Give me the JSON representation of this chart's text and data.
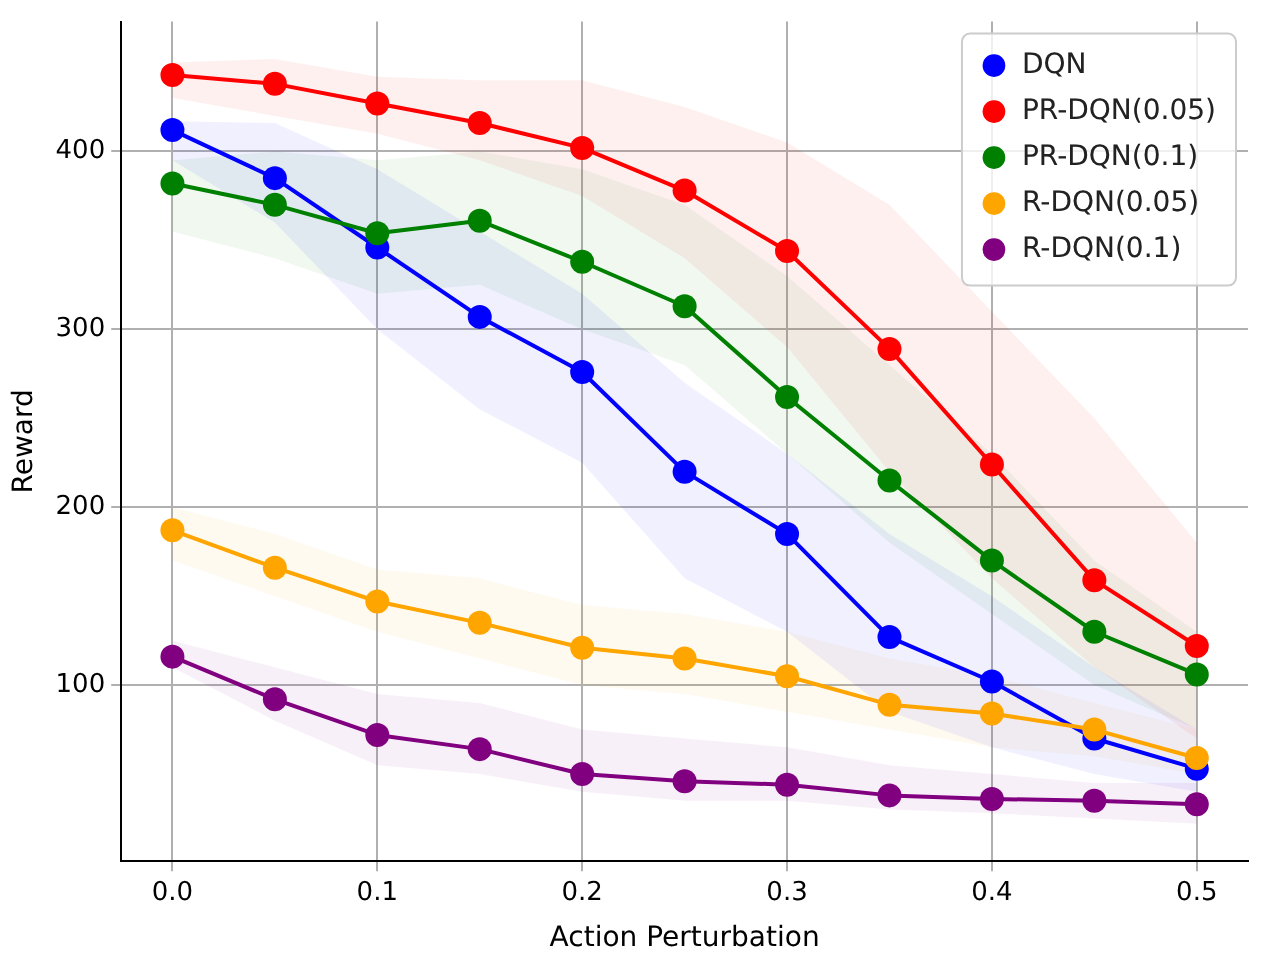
{
  "chart_data": {
    "type": "line",
    "xlabel": "Action Perturbation",
    "ylabel": "Reward",
    "x": [
      0,
      0.05,
      0.1,
      0.15,
      0.2,
      0.25,
      0.3,
      0.35,
      0.4,
      0.45,
      0.5
    ],
    "xlim": [
      -0.025,
      0.525
    ],
    "xticks": [
      {
        "value": 0,
        "label": "0.0"
      },
      0.1,
      0.2,
      0.3,
      0.4,
      0.5
    ],
    "ylim": [
      1,
      473
    ],
    "yticks": [
      100,
      200,
      300,
      400
    ],
    "grid": true,
    "legend": "top right",
    "marker": "circle",
    "line_style": "solid",
    "series": [
      {
        "name": "DQN",
        "color": "#0000ff",
        "values": [
          412,
          385,
          346,
          307,
          276,
          220,
          185,
          127,
          102,
          70,
          53
        ],
        "upper": [
          417,
          416,
          390,
          355,
          320,
          270,
          230,
          185,
          150,
          110,
          75
        ],
        "lower": [
          395,
          360,
          300,
          255,
          225,
          160,
          130,
          85,
          65,
          50,
          40
        ]
      },
      {
        "name": "PR-DQN(0.05)",
        "color": "#ff0000",
        "values": [
          443,
          438,
          427,
          416,
          402,
          378,
          344,
          289,
          224,
          159,
          122
        ],
        "upper": [
          450,
          452,
          442,
          440,
          440,
          425,
          405,
          370,
          310,
          250,
          180
        ],
        "lower": [
          430,
          420,
          410,
          395,
          375,
          340,
          290,
          220,
          160,
          110,
          70
        ]
      },
      {
        "name": "PR-DQN(0.1)",
        "color": "#008000",
        "values": [
          382,
          370,
          354,
          361,
          338,
          313,
          262,
          215,
          170,
          130,
          106
        ],
        "upper": [
          395,
          400,
          395,
          400,
          390,
          370,
          330,
          280,
          230,
          170,
          130
        ],
        "lower": [
          355,
          340,
          320,
          325,
          300,
          280,
          230,
          180,
          140,
          100,
          75
        ]
      },
      {
        "name": "R-DQN(0.05)",
        "color": "#ffa500",
        "values": [
          187,
          166,
          147,
          135,
          121,
          115,
          105,
          89,
          84,
          75,
          59
        ],
        "upper": [
          200,
          185,
          165,
          160,
          145,
          140,
          130,
          115,
          105,
          90,
          75
        ],
        "lower": [
          170,
          150,
          130,
          115,
          100,
          95,
          85,
          75,
          65,
          60,
          50
        ]
      },
      {
        "name": "R-DQN(0.1)",
        "color": "#800080",
        "values": [
          116,
          92,
          72,
          64,
          50,
          46,
          44,
          38,
          36,
          35,
          33
        ],
        "upper": [
          125,
          110,
          95,
          90,
          75,
          70,
          65,
          55,
          50,
          45,
          45
        ],
        "lower": [
          110,
          80,
          55,
          50,
          40,
          35,
          35,
          30,
          28,
          25,
          22
        ]
      }
    ]
  }
}
